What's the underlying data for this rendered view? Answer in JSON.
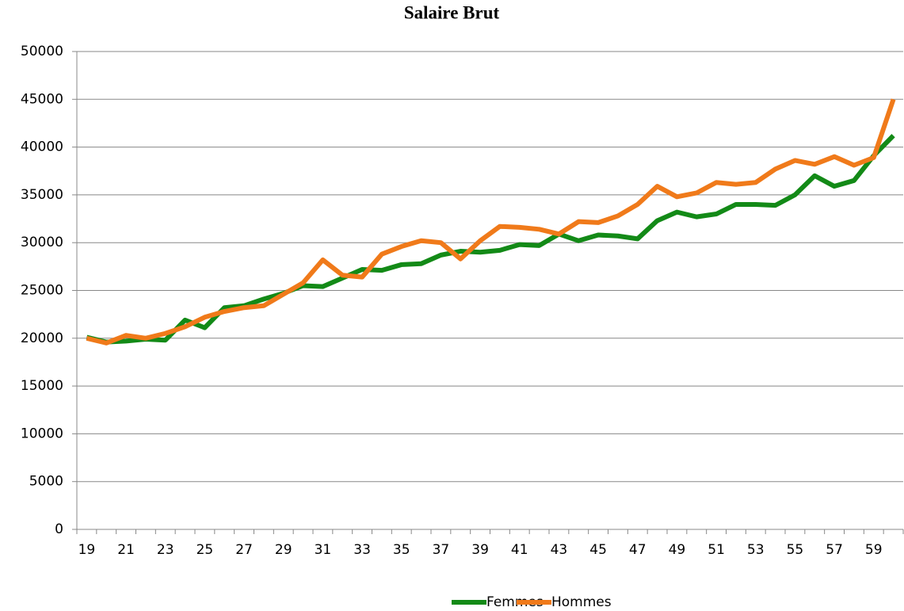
{
  "chart_data": {
    "type": "line",
    "title": "Salaire Brut",
    "categories": [
      "19",
      null,
      "21",
      null,
      "23",
      null,
      "25",
      null,
      "27",
      null,
      "29",
      null,
      "31",
      null,
      "33",
      null,
      "35",
      null,
      "37",
      null,
      "39",
      null,
      "41",
      null,
      "43",
      null,
      "45",
      null,
      "47",
      null,
      "49",
      null,
      "51",
      null,
      "53",
      null,
      "55",
      null,
      "57",
      null,
      "59",
      null
    ],
    "series": [
      {
        "name": "Femmes",
        "color": "#138a17",
        "values": [
          20100,
          19600,
          19700,
          19900,
          19800,
          21900,
          21100,
          23200,
          23400,
          24100,
          24700,
          25500,
          25400,
          26300,
          27200,
          27100,
          27700,
          27800,
          28700,
          29100,
          29000,
          29200,
          29800,
          29700,
          30900,
          30200,
          30800,
          30700,
          30400,
          32300,
          33200,
          32700,
          33000,
          34000,
          34000,
          33900,
          35000,
          37000,
          35900,
          36500,
          39100,
          41200
        ]
      },
      {
        "name": "Hommes",
        "color": "#f07a1a",
        "values": [
          20000,
          19500,
          20300,
          20000,
          20500,
          21200,
          22200,
          22800,
          23200,
          23400,
          24600,
          25800,
          28200,
          26600,
          26400,
          28800,
          29600,
          30200,
          30000,
          28300,
          30200,
          31700,
          31600,
          31400,
          30900,
          32200,
          32100,
          32800,
          34000,
          35900,
          34800,
          35200,
          36300,
          36100,
          36300,
          37700,
          38600,
          38200,
          39000,
          38100,
          38900,
          45000
        ]
      }
    ],
    "ylim": [
      0,
      50000
    ],
    "yticks": [
      0,
      5000,
      10000,
      15000,
      20000,
      25000,
      30000,
      35000,
      40000,
      45000,
      50000
    ],
    "grid": true,
    "legend": "bottom"
  }
}
